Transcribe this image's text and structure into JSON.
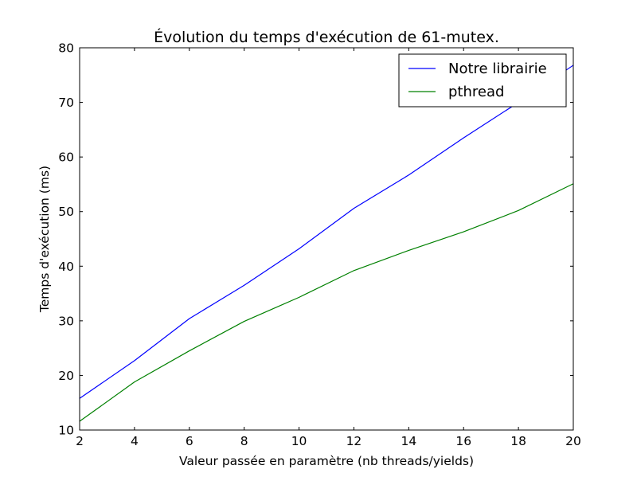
{
  "chart_data": {
    "type": "line",
    "title": "Évolution du temps d'exécution de 61-mutex.",
    "xlabel": "Valeur passée en paramètre (nb threads/yields)",
    "ylabel": "Temps d'exécution (ms)",
    "xlim": [
      2,
      20
    ],
    "ylim": [
      10,
      80
    ],
    "xticks": [
      2,
      4,
      6,
      8,
      10,
      12,
      14,
      16,
      18,
      20
    ],
    "yticks": [
      10,
      20,
      30,
      40,
      50,
      60,
      70,
      80
    ],
    "grid": false,
    "legend_position": "top-right",
    "x": [
      2,
      4,
      6,
      8,
      10,
      12,
      14,
      16,
      18,
      20
    ],
    "series": [
      {
        "name": "Notre librairie",
        "color": "#0000ff",
        "values": [
          15.8,
          22.7,
          30.4,
          36.5,
          43.2,
          50.6,
          56.7,
          63.5,
          70.0,
          76.8
        ]
      },
      {
        "name": "pthread",
        "color": "#008000",
        "values": [
          11.6,
          18.8,
          24.5,
          29.9,
          34.3,
          39.2,
          42.9,
          46.3,
          50.2,
          55.1
        ]
      }
    ]
  }
}
